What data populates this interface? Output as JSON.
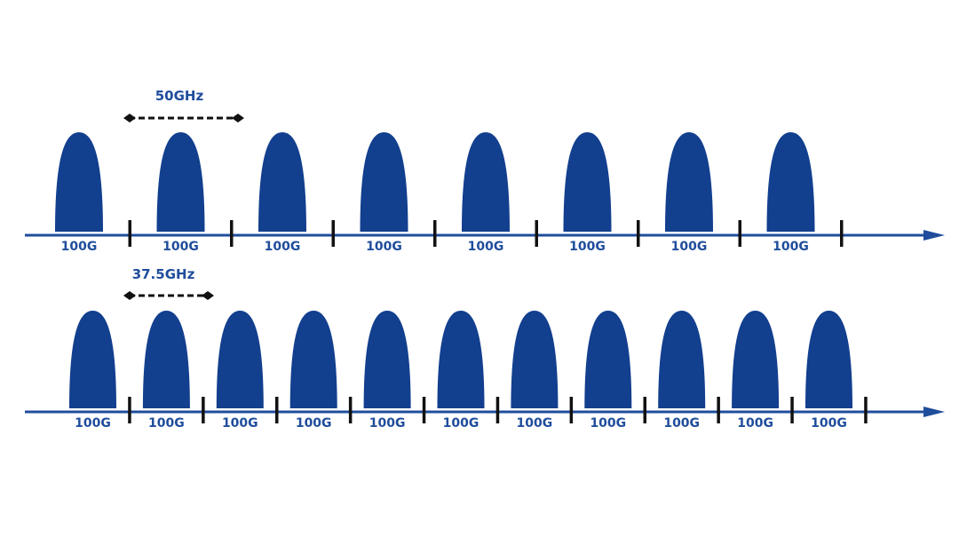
{
  "colors": {
    "channel": "#123f8e",
    "axis": "#1f4d9c",
    "label": "#1f4d9c",
    "marker": "#111111",
    "spacing_arrow": "#111111"
  },
  "rows": [
    {
      "spacing_label": "50GHz",
      "channels": [
        "100G",
        "100G",
        "100G",
        "100G",
        "100G",
        "100G",
        "100G",
        "100G"
      ]
    },
    {
      "spacing_label": "37.5GHz",
      "channels": [
        "100G",
        "100G",
        "100G",
        "100G",
        "100G",
        "100G",
        "100G",
        "100G",
        "100G",
        "100G",
        "100G"
      ]
    }
  ]
}
